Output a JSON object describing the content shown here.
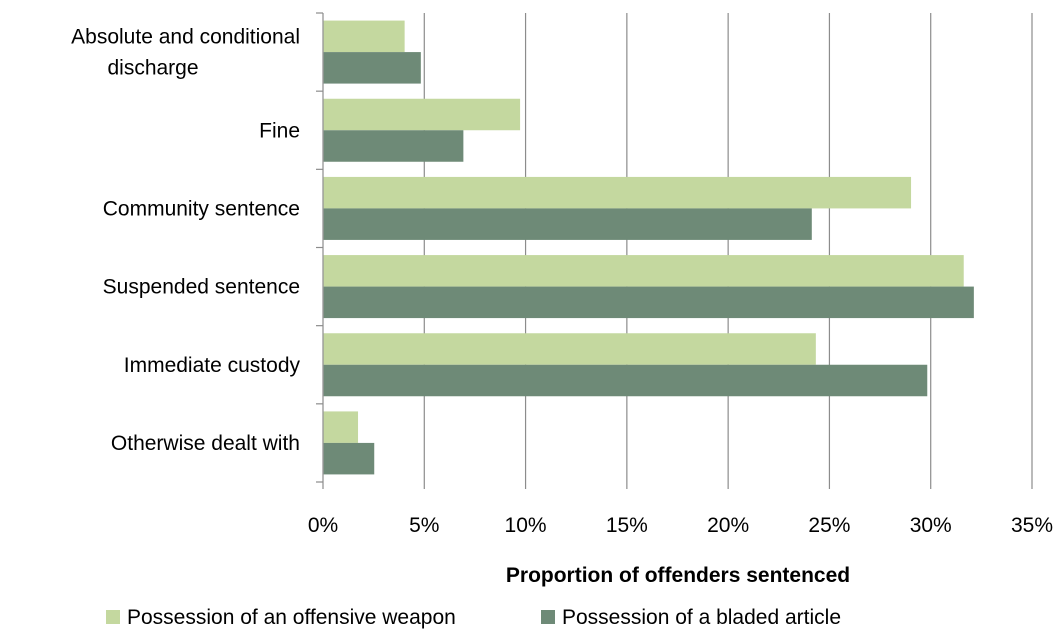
{
  "chart_data": {
    "type": "bar",
    "orientation": "horizontal",
    "categories": [
      [
        "Absolute and conditional",
        "discharge"
      ],
      [
        "Fine"
      ],
      [
        "Community sentence"
      ],
      [
        "Suspended sentence"
      ],
      [
        "Immediate custody"
      ],
      [
        "Otherwise dealt with"
      ]
    ],
    "series": [
      {
        "name": "Possession of an offensive weapon",
        "color": "#c4d89f",
        "values": [
          4.0,
          9.7,
          29.0,
          31.6,
          24.3,
          1.7
        ]
      },
      {
        "name": "Possession of a bladed article",
        "color": "#6e8a77",
        "values": [
          4.8,
          6.9,
          24.1,
          32.1,
          29.8,
          2.5
        ]
      }
    ],
    "xlim": [
      0,
      35
    ],
    "xticks": [
      "0%",
      "5%",
      "10%",
      "15%",
      "20%",
      "25%",
      "30%",
      "35%"
    ],
    "xlabel": "Proportion of offenders  sentenced",
    "grid": true,
    "legend_position": "bottom"
  }
}
